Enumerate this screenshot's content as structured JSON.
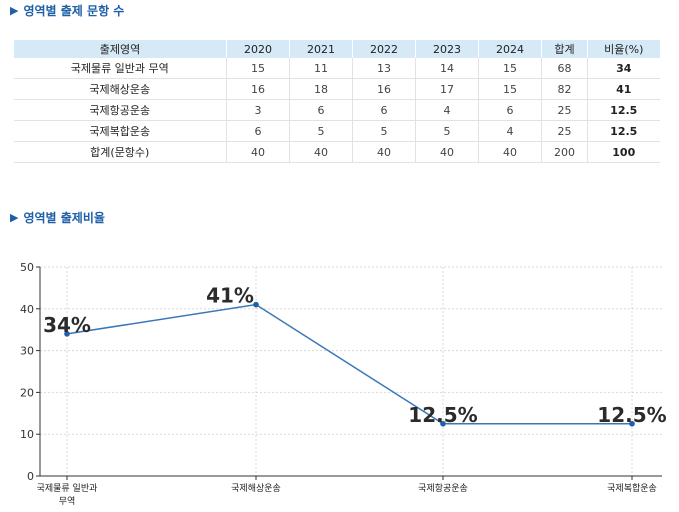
{
  "section1": {
    "title": "영역별 출제 문항 수"
  },
  "section2": {
    "title": "영역별 출제비율"
  },
  "table": {
    "headers": [
      "출제영역",
      "2020",
      "2021",
      "2022",
      "2023",
      "2024",
      "합계",
      "비율(%)"
    ],
    "rows": [
      [
        "국제물류 일반과 무역",
        "15",
        "11",
        "13",
        "14",
        "15",
        "68",
        "34"
      ],
      [
        "국제해상운송",
        "16",
        "18",
        "16",
        "17",
        "15",
        "82",
        "41"
      ],
      [
        "국제항공운송",
        "3",
        "6",
        "6",
        "4",
        "6",
        "25",
        "12.5"
      ],
      [
        "국제복합운송",
        "6",
        "5",
        "5",
        "5",
        "4",
        "25",
        "12.5"
      ],
      [
        "합계(문항수)",
        "40",
        "40",
        "40",
        "40",
        "40",
        "200",
        "100"
      ]
    ]
  },
  "chart_data": {
    "type": "line",
    "categories": [
      "국제물류 일반과 무역",
      "국제해상운송",
      "국제항공운송",
      "국제복합운송"
    ],
    "category_display": [
      [
        "국제물류 일반과",
        "무역"
      ],
      [
        "국제해상운송"
      ],
      [
        "국제항공운송"
      ],
      [
        "국제복합운송"
      ]
    ],
    "values": [
      34,
      41,
      12.5,
      12.5
    ],
    "data_labels": [
      "34%",
      "41%",
      "12.5%",
      "12.5%"
    ],
    "ylim": [
      0,
      50
    ],
    "yticks": [
      0,
      10,
      20,
      30,
      40,
      50
    ],
    "grid": true,
    "line_color": "#3a78b5",
    "marker_color": "#1f5fa8"
  }
}
